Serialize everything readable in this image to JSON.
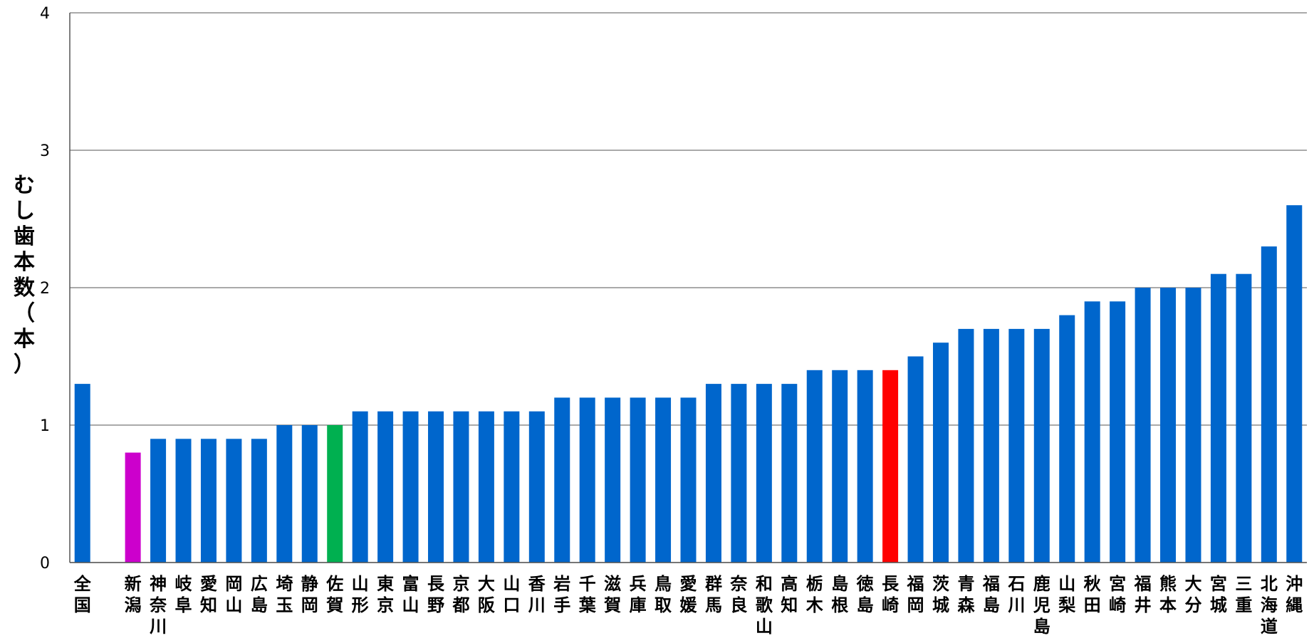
{
  "chart_data": {
    "type": "bar",
    "ylabel": "むし歯本数（本）",
    "ylim": [
      0,
      4
    ],
    "yticks": [
      "0",
      "1",
      "2",
      "3",
      "4"
    ],
    "grid": true,
    "categories": [
      "全国",
      "",
      "新潟",
      "神奈川",
      "岐阜",
      "愛知",
      "岡山",
      "広島",
      "埼玉",
      "静岡",
      "佐賀",
      "山形",
      "東京",
      "富山",
      "長野",
      "京都",
      "大阪",
      "山口",
      "香川",
      "岩手",
      "千葉",
      "滋賀",
      "兵庫",
      "鳥取",
      "愛媛",
      "群馬",
      "奈良",
      "和歌山",
      "高知",
      "栃木",
      "島根",
      "徳島",
      "長崎",
      "福岡",
      "茨城",
      "青森",
      "福島",
      "石川",
      "鹿児島",
      "山梨",
      "秋田",
      "宮崎",
      "福井",
      "熊本",
      "大分",
      "宮城",
      "三重",
      "北海道",
      "沖縄"
    ],
    "values": [
      1.3,
      null,
      0.8,
      0.9,
      0.9,
      0.9,
      0.9,
      0.9,
      1.0,
      1.0,
      1.0,
      1.1,
      1.1,
      1.1,
      1.1,
      1.1,
      1.1,
      1.1,
      1.1,
      1.2,
      1.2,
      1.2,
      1.2,
      1.2,
      1.2,
      1.3,
      1.3,
      1.3,
      1.3,
      1.4,
      1.4,
      1.4,
      1.4,
      1.5,
      1.6,
      1.7,
      1.7,
      1.7,
      1.7,
      1.8,
      1.9,
      1.9,
      2.0,
      2.0,
      2.0,
      2.1,
      2.1,
      2.3,
      2.6
    ],
    "colors": {
      "default": "#0066CC",
      "highlight": {
        "新潟": "#CC00CC",
        "佐賀": "#00B050",
        "長崎": "#FF0000"
      }
    }
  }
}
